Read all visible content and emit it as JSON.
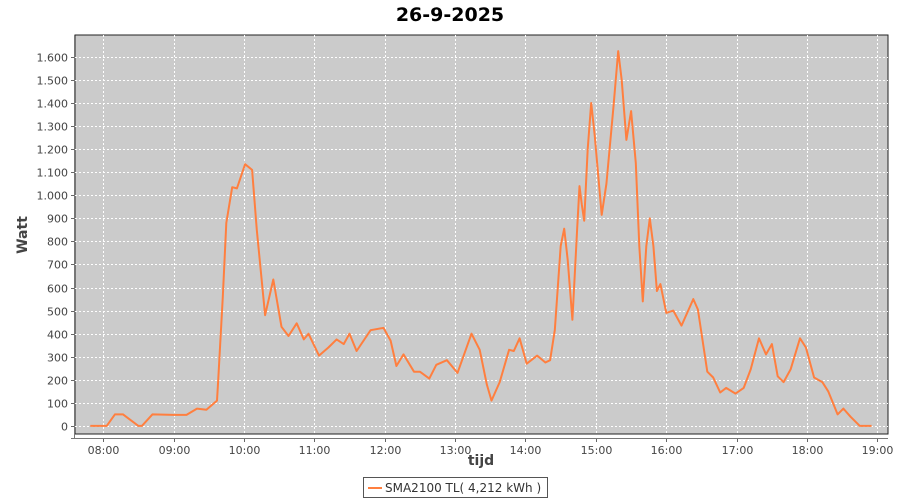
{
  "chart_data": {
    "type": "line",
    "title": "26-9-2025",
    "xlabel": "tijd",
    "ylabel": "Watt",
    "xlim": [
      "07:36",
      "19:09"
    ],
    "ylim": [
      -35,
      1695
    ],
    "grid": true,
    "legend_position": "bottom",
    "x_ticks": [
      "08:00",
      "09:00",
      "10:00",
      "11:00",
      "12:00",
      "13:00",
      "14:00",
      "15:00",
      "16:00",
      "17:00",
      "18:00",
      "19:00"
    ],
    "y_ticks": [
      0,
      100,
      200,
      300,
      400,
      500,
      600,
      700,
      800,
      900,
      1000,
      1100,
      1200,
      1300,
      1400,
      1500,
      1600
    ],
    "y_tick_labels": [
      "0",
      "100",
      "200",
      "300",
      "400",
      "500",
      "600",
      "700",
      "800",
      "900",
      "1.000",
      "1.100",
      "1.200",
      "1.300",
      "1.400",
      "1.500",
      "1.600"
    ],
    "colors": {
      "plot_background": "#cbcbcb",
      "grid": "#ffffff",
      "series": "#ff7f3f"
    },
    "series": [
      {
        "name": "SMA2100 TL( 4,212 kWh )",
        "points": [
          [
            "07:49",
            0
          ],
          [
            "08:03",
            0
          ],
          [
            "08:10",
            50
          ],
          [
            "08:17",
            50
          ],
          [
            "08:30",
            0
          ],
          [
            "08:33",
            0
          ],
          [
            "08:42",
            50
          ],
          [
            "09:00",
            48
          ],
          [
            "09:11",
            48
          ],
          [
            "09:20",
            75
          ],
          [
            "09:28",
            70
          ],
          [
            "09:37",
            110
          ],
          [
            "09:38",
            190
          ],
          [
            "09:42",
            560
          ],
          [
            "09:45",
            880
          ],
          [
            "09:50",
            1035
          ],
          [
            "09:54",
            1030
          ],
          [
            "10:01",
            1135
          ],
          [
            "10:07",
            1110
          ],
          [
            "10:11",
            850
          ],
          [
            "10:18",
            480
          ],
          [
            "10:25",
            635
          ],
          [
            "10:32",
            430
          ],
          [
            "10:38",
            390
          ],
          [
            "10:45",
            445
          ],
          [
            "10:51",
            375
          ],
          [
            "10:55",
            400
          ],
          [
            "11:04",
            305
          ],
          [
            "11:12",
            340
          ],
          [
            "11:19",
            375
          ],
          [
            "11:25",
            355
          ],
          [
            "11:30",
            400
          ],
          [
            "11:36",
            325
          ],
          [
            "11:48",
            415
          ],
          [
            "11:59",
            425
          ],
          [
            "12:05",
            370
          ],
          [
            "12:10",
            260
          ],
          [
            "12:16",
            310
          ],
          [
            "12:25",
            235
          ],
          [
            "12:30",
            235
          ],
          [
            "12:38",
            205
          ],
          [
            "12:44",
            265
          ],
          [
            "12:53",
            285
          ],
          [
            "13:02",
            230
          ],
          [
            "13:14",
            400
          ],
          [
            "13:21",
            330
          ],
          [
            "13:27",
            180
          ],
          [
            "13:31",
            110
          ],
          [
            "13:38",
            190
          ],
          [
            "13:46",
            330
          ],
          [
            "13:50",
            325
          ],
          [
            "13:55",
            380
          ],
          [
            "14:01",
            270
          ],
          [
            "14:10",
            305
          ],
          [
            "14:17",
            275
          ],
          [
            "14:21",
            285
          ],
          [
            "14:25",
            415
          ],
          [
            "14:30",
            780
          ],
          [
            "14:33",
            855
          ],
          [
            "14:36",
            720
          ],
          [
            "14:40",
            460
          ],
          [
            "14:44",
            850
          ],
          [
            "14:46",
            1040
          ],
          [
            "14:48",
            960
          ],
          [
            "14:50",
            890
          ],
          [
            "14:53",
            1200
          ],
          [
            "14:56",
            1400
          ],
          [
            "14:59",
            1260
          ],
          [
            "15:05",
            915
          ],
          [
            "15:09",
            1050
          ],
          [
            "15:15",
            1385
          ],
          [
            "15:19",
            1625
          ],
          [
            "15:22",
            1500
          ],
          [
            "15:26",
            1240
          ],
          [
            "15:30",
            1365
          ],
          [
            "15:34",
            1140
          ],
          [
            "15:37",
            780
          ],
          [
            "15:40",
            540
          ],
          [
            "15:43",
            780
          ],
          [
            "15:46",
            900
          ],
          [
            "15:49",
            780
          ],
          [
            "15:52",
            585
          ],
          [
            "15:55",
            615
          ],
          [
            "16:00",
            490
          ],
          [
            "16:06",
            500
          ],
          [
            "16:13",
            435
          ],
          [
            "16:23",
            550
          ],
          [
            "16:27",
            505
          ],
          [
            "16:35",
            235
          ],
          [
            "16:40",
            210
          ],
          [
            "16:46",
            145
          ],
          [
            "16:51",
            165
          ],
          [
            "16:59",
            140
          ],
          [
            "17:06",
            165
          ],
          [
            "17:12",
            245
          ],
          [
            "17:19",
            380
          ],
          [
            "17:25",
            310
          ],
          [
            "17:30",
            355
          ],
          [
            "17:35",
            215
          ],
          [
            "17:40",
            190
          ],
          [
            "17:46",
            245
          ],
          [
            "17:54",
            380
          ],
          [
            "17:59",
            340
          ],
          [
            "18:06",
            210
          ],
          [
            "18:13",
            190
          ],
          [
            "18:18",
            150
          ],
          [
            "18:26",
            50
          ],
          [
            "18:31",
            75
          ],
          [
            "18:37",
            40
          ],
          [
            "18:45",
            0
          ],
          [
            "18:55",
            0
          ]
        ]
      }
    ]
  }
}
